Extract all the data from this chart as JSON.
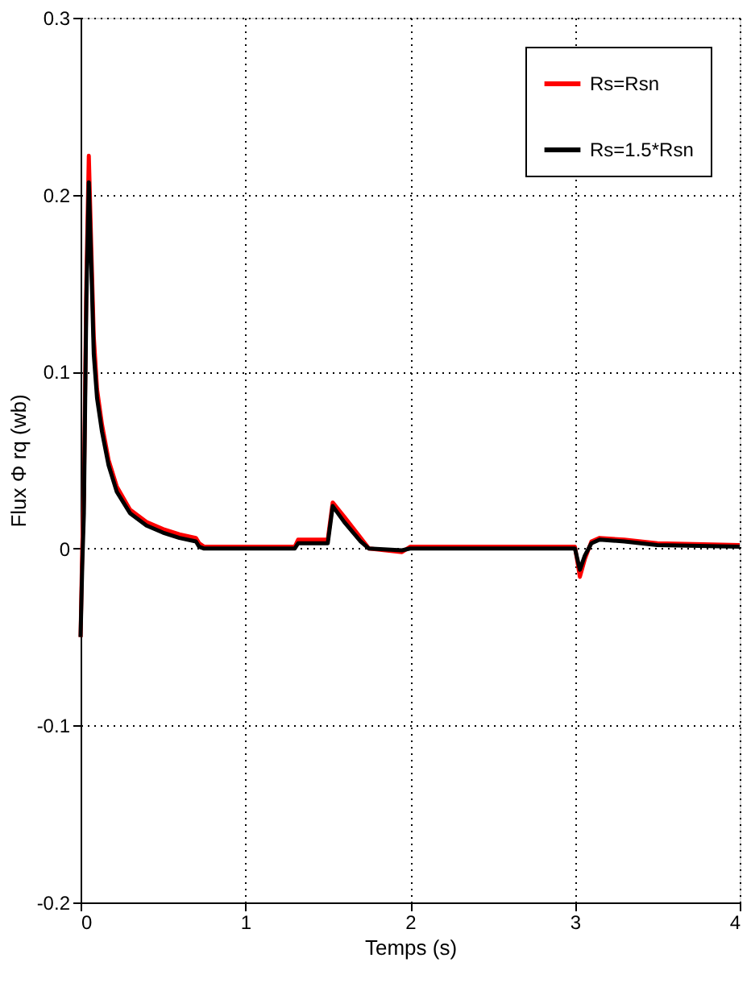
{
  "chart_data": {
    "type": "line",
    "xlabel": "Temps (s)",
    "ylabel": "Flux Φ rq (wb)",
    "xlim": [
      0,
      4
    ],
    "ylim": [
      -0.2,
      0.3
    ],
    "xticks": [
      0,
      1,
      2,
      3,
      4
    ],
    "yticks": [
      -0.2,
      -0.1,
      0,
      0.1,
      0.2,
      0.3
    ],
    "grid": true,
    "legend": "top right",
    "line_style": "solid",
    "marker": "none",
    "series": [
      {
        "name": "Rs=Rsn",
        "color": "#ff0000",
        "x": [
          0,
          0.01,
          0.02,
          0.035,
          0.05,
          0.065,
          0.08,
          0.1,
          0.13,
          0.17,
          0.22,
          0.3,
          0.4,
          0.5,
          0.6,
          0.7,
          0.72,
          0.75,
          1.0,
          1.3,
          1.32,
          1.5,
          1.53,
          1.6,
          1.7,
          1.75,
          1.95,
          2.0,
          2.5,
          3.0,
          3.03,
          3.06,
          3.1,
          3.15,
          3.3,
          3.5,
          4.0
        ],
        "values": [
          -0.05,
          0.0,
          0.03,
          0.15,
          0.222,
          0.17,
          0.12,
          0.09,
          0.07,
          0.05,
          0.035,
          0.022,
          0.015,
          0.011,
          0.008,
          0.006,
          0.003,
          0.001,
          0.001,
          0.001,
          0.005,
          0.005,
          0.026,
          0.018,
          0.006,
          0.0,
          -0.002,
          0.001,
          0.001,
          0.001,
          -0.016,
          -0.006,
          0.004,
          0.006,
          0.005,
          0.003,
          0.002
        ]
      },
      {
        "name": "Rs=1.5*Rsn",
        "color": "#000000",
        "x": [
          0,
          0.01,
          0.02,
          0.035,
          0.05,
          0.065,
          0.08,
          0.1,
          0.13,
          0.17,
          0.22,
          0.3,
          0.4,
          0.5,
          0.6,
          0.7,
          0.72,
          0.75,
          1.0,
          1.3,
          1.32,
          1.5,
          1.53,
          1.6,
          1.7,
          1.75,
          1.95,
          2.0,
          2.5,
          3.0,
          3.03,
          3.06,
          3.1,
          3.15,
          3.3,
          3.5,
          4.0
        ],
        "values": [
          -0.05,
          -0.01,
          0.02,
          0.14,
          0.207,
          0.16,
          0.11,
          0.085,
          0.066,
          0.047,
          0.032,
          0.02,
          0.013,
          0.009,
          0.006,
          0.004,
          0.001,
          0.0,
          0.0,
          0.0,
          0.003,
          0.003,
          0.024,
          0.015,
          0.004,
          0.0,
          -0.001,
          0.0,
          0.0,
          0.0,
          -0.012,
          -0.004,
          0.003,
          0.005,
          0.004,
          0.002,
          0.001
        ]
      }
    ]
  }
}
